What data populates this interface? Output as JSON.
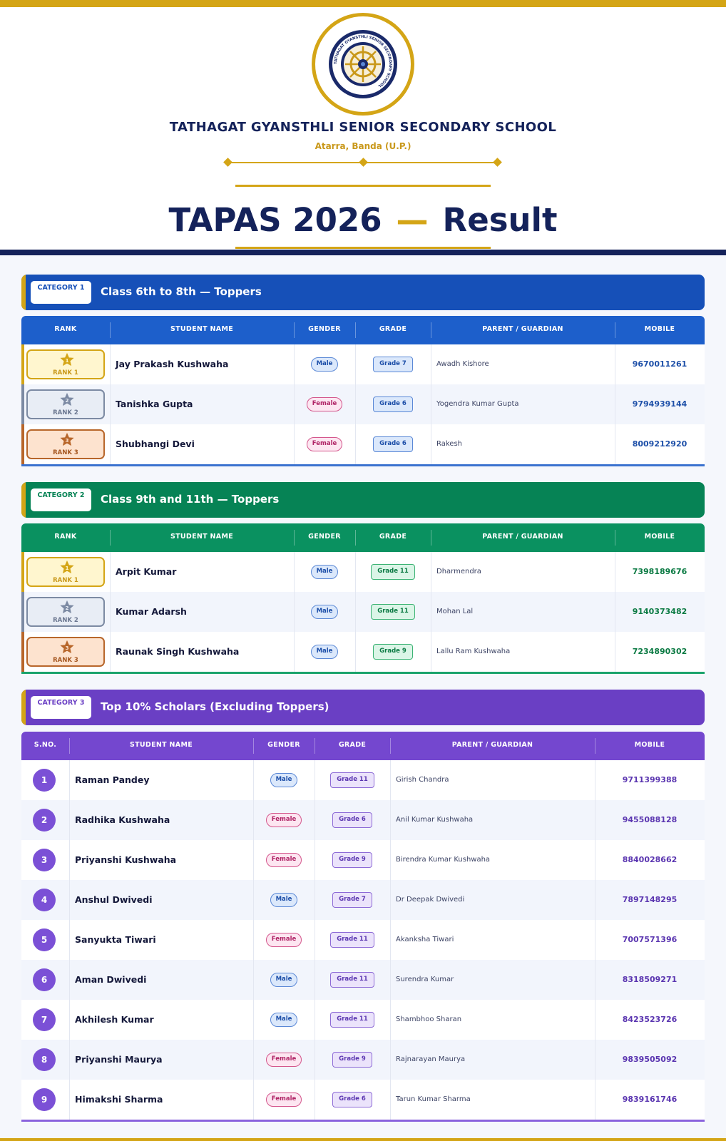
{
  "school": {
    "name": "TATHAGAT GYANSTHLI SENIOR SECONDARY SCHOOL",
    "location": "Atarra, Banda (U.P.)",
    "logo_text": "TATHAGAT GYANSTHLI SENIOR SECONDARY SCHOOL"
  },
  "title": {
    "main": "TAPAS 2026",
    "dash": "—",
    "suffix": "Result"
  },
  "colors": {
    "gold": "#d4a516",
    "navy": "#14225a",
    "blue": "#1650b8",
    "green": "#068355",
    "purple": "#6a3fc4"
  },
  "cat1": {
    "badge": "CATEGORY 1",
    "title": "Class 6th to 8th — Toppers",
    "headers": [
      "RANK",
      "STUDENT NAME",
      "GENDER",
      "GRADE",
      "PARENT / GUARDIAN",
      "MOBILE"
    ],
    "rows": [
      {
        "rank": "RANK 1",
        "name": "Jay Prakash Kushwaha",
        "gender": "Male",
        "grade": "Grade 7",
        "parent": "Awadh Kishore",
        "mobile": "9670011261"
      },
      {
        "rank": "RANK 2",
        "name": "Tanishka Gupta",
        "gender": "Female",
        "grade": "Grade 6",
        "parent": "Yogendra Kumar Gupta",
        "mobile": "9794939144"
      },
      {
        "rank": "RANK 3",
        "name": "Shubhangi Devi",
        "gender": "Female",
        "grade": "Grade 6",
        "parent": "Rakesh",
        "mobile": "8009212920"
      }
    ]
  },
  "cat2": {
    "badge": "CATEGORY 2",
    "title": "Class 9th and 11th — Toppers",
    "headers": [
      "RANK",
      "STUDENT NAME",
      "GENDER",
      "GRADE",
      "PARENT / GUARDIAN",
      "MOBILE"
    ],
    "rows": [
      {
        "rank": "RANK 1",
        "name": "Arpit Kumar",
        "gender": "Male",
        "grade": "Grade 11",
        "parent": "Dharmendra",
        "mobile": "7398189676"
      },
      {
        "rank": "RANK 2",
        "name": "Kumar Adarsh",
        "gender": "Male",
        "grade": "Grade 11",
        "parent": "Mohan Lal",
        "mobile": "9140373482"
      },
      {
        "rank": "RANK 3",
        "name": "Raunak Singh Kushwaha",
        "gender": "Male",
        "grade": "Grade 9",
        "parent": "Lallu Ram Kushwaha",
        "mobile": "7234890302"
      }
    ]
  },
  "cat3": {
    "badge": "CATEGORY 3",
    "title": "Top 10% Scholars (Excluding Toppers)",
    "headers": [
      "S.NO.",
      "STUDENT NAME",
      "GENDER",
      "GRADE",
      "PARENT / GUARDIAN",
      "MOBILE"
    ],
    "rows": [
      {
        "sno": "1",
        "name": "Raman Pandey",
        "gender": "Male",
        "grade": "Grade 11",
        "parent": "Girish Chandra",
        "mobile": "9711399388"
      },
      {
        "sno": "2",
        "name": "Radhika Kushwaha",
        "gender": "Female",
        "grade": "Grade 6",
        "parent": "Anil Kumar Kushwaha",
        "mobile": "9455088128"
      },
      {
        "sno": "3",
        "name": "Priyanshi Kushwaha",
        "gender": "Female",
        "grade": "Grade 9",
        "parent": "Birendra Kumar Kushwaha",
        "mobile": "8840028662"
      },
      {
        "sno": "4",
        "name": "Anshul Dwivedi",
        "gender": "Male",
        "grade": "Grade 7",
        "parent": "Dr Deepak Dwivedi",
        "mobile": "7897148295"
      },
      {
        "sno": "5",
        "name": "Sanyukta Tiwari",
        "gender": "Female",
        "grade": "Grade 11",
        "parent": "Akanksha Tiwari",
        "mobile": "7007571396"
      },
      {
        "sno": "6",
        "name": "Aman Dwivedi",
        "gender": "Male",
        "grade": "Grade 11",
        "parent": "Surendra Kumar",
        "mobile": "8318509271"
      },
      {
        "sno": "7",
        "name": "Akhilesh Kumar",
        "gender": "Male",
        "grade": "Grade 11",
        "parent": "Shambhoo Sharan",
        "mobile": "8423523726"
      },
      {
        "sno": "8",
        "name": "Priyanshi Maurya",
        "gender": "Female",
        "grade": "Grade 9",
        "parent": "Rajnarayan Maurya",
        "mobile": "9839505092"
      },
      {
        "sno": "9",
        "name": "Himakshi Sharma",
        "gender": "Female",
        "grade": "Grade 6",
        "parent": "Tarun Kumar Sharma",
        "mobile": "9839161746"
      }
    ]
  }
}
